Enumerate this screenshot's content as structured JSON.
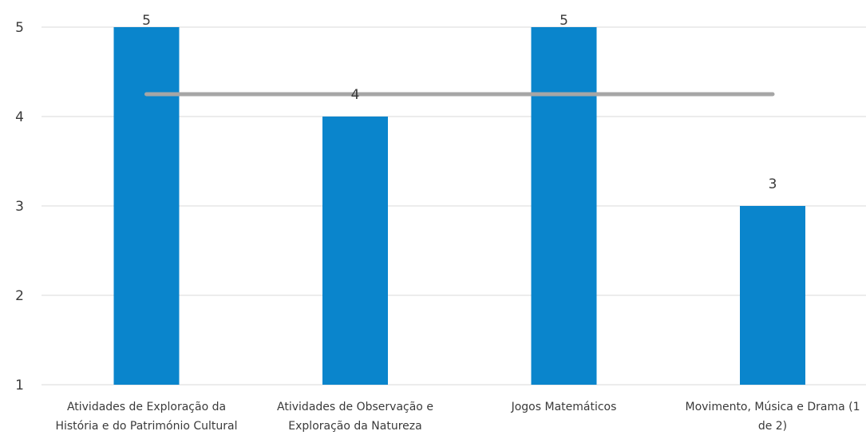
{
  "chart_data": {
    "type": "bar",
    "categories": [
      [
        "Atividades de Exploração da",
        "História e do Património Cultural"
      ],
      [
        "Atividades de Observação e",
        "Exploração da Natureza"
      ],
      [
        "Jogos Matemáticos"
      ],
      [
        "Movimento, Música e Drama (1",
        "de 2)"
      ]
    ],
    "values": [
      5,
      4,
      5,
      3
    ],
    "data_labels": [
      "5",
      "4",
      "5",
      "3"
    ],
    "average_line": {
      "value": 4.25
    },
    "ylim": [
      1,
      5
    ],
    "yticks": [
      1,
      2,
      3,
      4,
      5
    ],
    "grid": true,
    "title": "",
    "xlabel": "",
    "ylabel": "",
    "colors": {
      "bar": "#0a85cc",
      "average_line": "#a6a6a6",
      "grid": "#d9d9d9",
      "text": "#3a3a3a"
    }
  }
}
